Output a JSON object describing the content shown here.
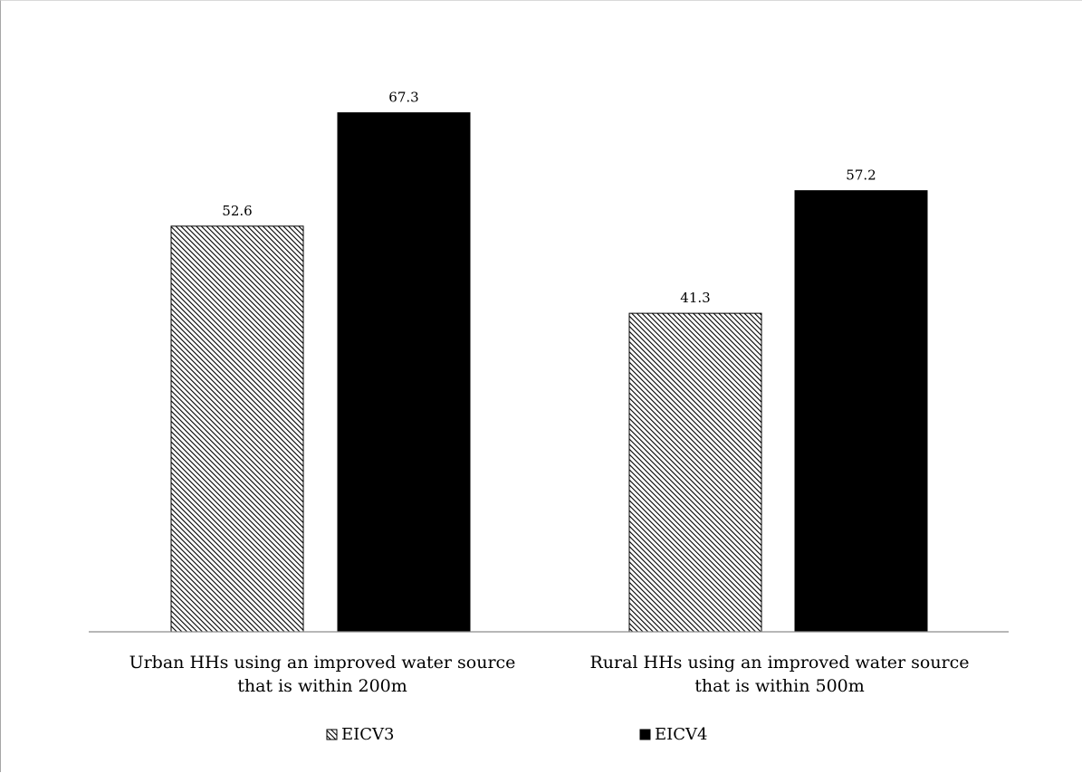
{
  "chart_data": {
    "type": "bar",
    "title": "",
    "xlabel": "",
    "ylabel": "",
    "categories": [
      [
        "Urban HHs using an improved water source",
        "that is within 200m"
      ],
      [
        "Rural HHs using an improved water source",
        "that is within  500m"
      ]
    ],
    "series": [
      {
        "name": "EICV3",
        "values": [
          52.6,
          41.3
        ],
        "fill": "hatched",
        "color": "#000000"
      },
      {
        "name": "EICV4",
        "values": [
          67.3,
          57.2
        ],
        "fill": "solid",
        "color": "#000000"
      }
    ],
    "ylim": [
      0,
      80
    ],
    "grid": false,
    "legend": "bottom",
    "data_labels": true
  }
}
